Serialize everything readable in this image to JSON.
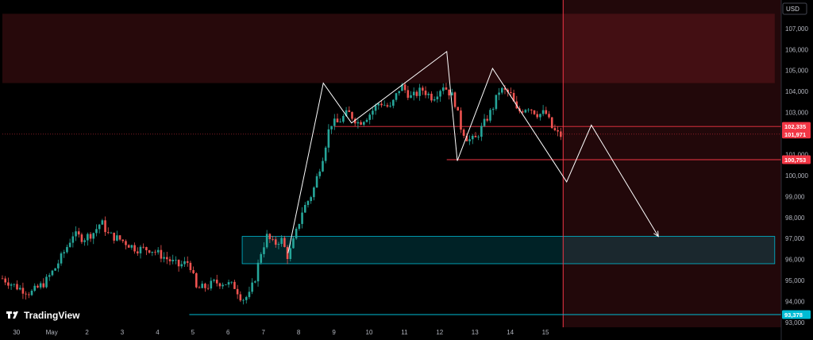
{
  "chart_data": {
    "type": "candlestick",
    "currency": "USD",
    "brand": "TradingView",
    "ylim": [
      93000,
      107700
    ],
    "y_ticks": [
      93000,
      94000,
      95000,
      96000,
      97000,
      98000,
      99000,
      100000,
      101000,
      102000,
      103000,
      104000,
      105000,
      106000,
      107000
    ],
    "y_tick_labels": [
      "93,000",
      "94,000",
      "95,000",
      "96,000",
      "97,000",
      "98,000",
      "99,000",
      "100,000",
      "101,000",
      "102,000",
      "103,000",
      "104,000",
      "105,000",
      "106,000",
      "107,000"
    ],
    "x_ticks": [
      {
        "label": "30",
        "day": 0.4
      },
      {
        "label": "May",
        "day": 1.4
      },
      {
        "label": "2",
        "day": 2.4
      },
      {
        "label": "3",
        "day": 3.4
      },
      {
        "label": "4",
        "day": 4.4
      },
      {
        "label": "5",
        "day": 5.4
      },
      {
        "label": "6",
        "day": 6.4
      },
      {
        "label": "7",
        "day": 7.4
      },
      {
        "label": "8",
        "day": 8.4
      },
      {
        "label": "9",
        "day": 9.4
      },
      {
        "label": "10",
        "day": 10.4
      },
      {
        "label": "11",
        "day": 11.4
      },
      {
        "label": "12",
        "day": 12.4
      },
      {
        "label": "13",
        "day": 13.4
      },
      {
        "label": "14",
        "day": 14.4
      },
      {
        "label": "15",
        "day": 15.4
      }
    ],
    "xlim": [
      0,
      21.9
    ],
    "current_day": 15.9,
    "closes": [
      [
        0.0,
        95100
      ],
      [
        0.4,
        94700
      ],
      [
        0.8,
        94400
      ],
      [
        1.2,
        94900
      ],
      [
        1.5,
        95600
      ],
      [
        1.8,
        96500
      ],
      [
        2.0,
        97200
      ],
      [
        2.3,
        97000
      ],
      [
        2.6,
        97300
      ],
      [
        2.8,
        97800
      ],
      [
        3.0,
        97200
      ],
      [
        3.4,
        96900
      ],
      [
        3.8,
        96500
      ],
      [
        4.2,
        96500
      ],
      [
        4.6,
        96100
      ],
      [
        5.0,
        95700
      ],
      [
        5.3,
        95900
      ],
      [
        5.5,
        94600
      ],
      [
        5.8,
        94700
      ],
      [
        6.0,
        94900
      ],
      [
        6.3,
        94900
      ],
      [
        6.6,
        94700
      ],
      [
        6.8,
        94100
      ],
      [
        7.0,
        94300
      ],
      [
        7.2,
        95300
      ],
      [
        7.3,
        96200
      ],
      [
        7.5,
        97100
      ],
      [
        7.7,
        96700
      ],
      [
        7.9,
        97000
      ],
      [
        8.1,
        96100
      ],
      [
        8.3,
        97100
      ],
      [
        8.5,
        98300
      ],
      [
        8.8,
        99200
      ],
      [
        9.1,
        101000
      ],
      [
        9.3,
        102500
      ],
      [
        9.5,
        102500
      ],
      [
        9.8,
        103000
      ],
      [
        10.1,
        102500
      ],
      [
        10.4,
        102900
      ],
      [
        10.7,
        103500
      ],
      [
        11.0,
        103200
      ],
      [
        11.3,
        104300
      ],
      [
        11.6,
        103700
      ],
      [
        11.9,
        104100
      ],
      [
        12.2,
        103700
      ],
      [
        12.5,
        104300
      ],
      [
        12.8,
        103700
      ],
      [
        13.0,
        102300
      ],
      [
        13.2,
        101700
      ],
      [
        13.4,
        101700
      ],
      [
        13.6,
        102300
      ],
      [
        13.9,
        103200
      ],
      [
        14.1,
        104100
      ],
      [
        14.4,
        103900
      ],
      [
        14.6,
        103000
      ],
      [
        14.9,
        103300
      ],
      [
        15.2,
        102900
      ],
      [
        15.4,
        103000
      ],
      [
        15.6,
        102200
      ],
      [
        15.8,
        101900
      ]
    ],
    "price_badges": [
      {
        "price": 102335,
        "label": "102,335",
        "color": "#f23645"
      },
      {
        "price": 101971,
        "label": "101,971",
        "color": "#f23645"
      },
      {
        "price": 100753,
        "label": "100,753",
        "color": "#f23645"
      },
      {
        "price": 93378,
        "label": "93,378",
        "color": "#00bcd4",
        "text_color": "#000000"
      }
    ],
    "horizontal_lines": [
      {
        "price": 102335,
        "from_day": 9.4,
        "color": "#f23645",
        "style": "solid"
      },
      {
        "price": 100753,
        "from_day": 12.6,
        "color": "#f23645",
        "style": "solid"
      },
      {
        "price": 101971,
        "from_day": 0,
        "color": "#f23645",
        "style": "dotted"
      },
      {
        "price": 93378,
        "from_day": 5.3,
        "color": "#00bcd4",
        "style": "solid"
      }
    ],
    "zones": [
      {
        "name": "resistance-zone",
        "y_from": 104400,
        "y_to": 107700,
        "from_day": 0,
        "to_day": 21.9,
        "color": "#f23645",
        "opacity": 0.16
      },
      {
        "name": "demand-zone",
        "y_from": 95800,
        "y_to": 97100,
        "from_day": 6.8,
        "to_day": 21.9,
        "color": "#00bcd4",
        "opacity": 0.18
      }
    ],
    "future_zone": {
      "from_day": 15.9,
      "color": "#f23645",
      "opacity": 0.14
    },
    "pattern_path": [
      [
        8.1,
        96300
      ],
      [
        9.1,
        104400
      ],
      [
        9.9,
        102500
      ],
      [
        12.6,
        105900
      ],
      [
        12.9,
        100700
      ],
      [
        13.9,
        105100
      ],
      [
        16.0,
        99700
      ],
      [
        16.7,
        102400
      ],
      [
        18.6,
        97100
      ]
    ],
    "arrow": {
      "from_index": 7,
      "to_index": 8,
      "color": "#ffffff"
    }
  }
}
